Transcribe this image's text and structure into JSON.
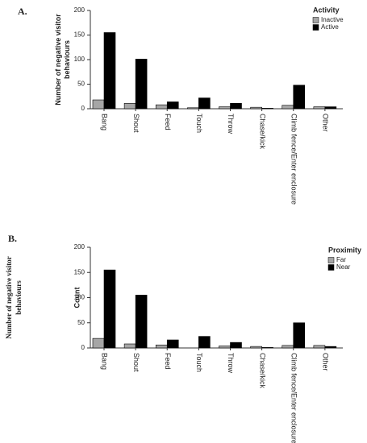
{
  "chart_data": [
    {
      "type": "bar",
      "panel_label": "A.",
      "ylabel": [
        "Number of negative visitor",
        "behaviours"
      ],
      "categories": [
        "Bang",
        "Shout",
        "Feed",
        "Touch",
        "Throw",
        "Chase/kick",
        "Climb fence/Enter enclosure",
        "Other"
      ],
      "series": [
        {
          "name": "Inactive",
          "color": "#a6a6a6",
          "values": [
            18,
            11,
            8,
            2,
            4,
            3,
            7,
            4
          ]
        },
        {
          "name": "Active",
          "color": "#000000",
          "values": [
            155,
            101,
            14,
            22,
            11,
            1,
            48,
            4
          ]
        }
      ],
      "legend_title": "Activity",
      "legend": "upper right",
      "ylim": [
        0,
        200
      ],
      "yticks": [
        0,
        50,
        100,
        150,
        200
      ],
      "grid": false
    },
    {
      "type": "bar",
      "panel_label": "B.",
      "side_label": [
        "Number of negative visitor",
        "behaviours"
      ],
      "ylabel": [
        "Count"
      ],
      "categories": [
        "Bang",
        "Shout",
        "Feed",
        "Touch",
        "Throw",
        "Chase/kick",
        "Climb fence/Enter enclosure",
        "Other"
      ],
      "series": [
        {
          "name": "Far",
          "color": "#a6a6a6",
          "values": [
            19,
            8,
            6,
            0,
            4,
            3,
            5,
            5
          ]
        },
        {
          "name": "Near",
          "color": "#000000",
          "values": [
            155,
            105,
            16,
            23,
            11,
            1,
            50,
            3
          ]
        }
      ],
      "legend_title": "Proximity",
      "legend": "upper right",
      "ylim": [
        0,
        200
      ],
      "yticks": [
        0,
        50,
        100,
        150,
        200
      ],
      "grid": false
    }
  ]
}
